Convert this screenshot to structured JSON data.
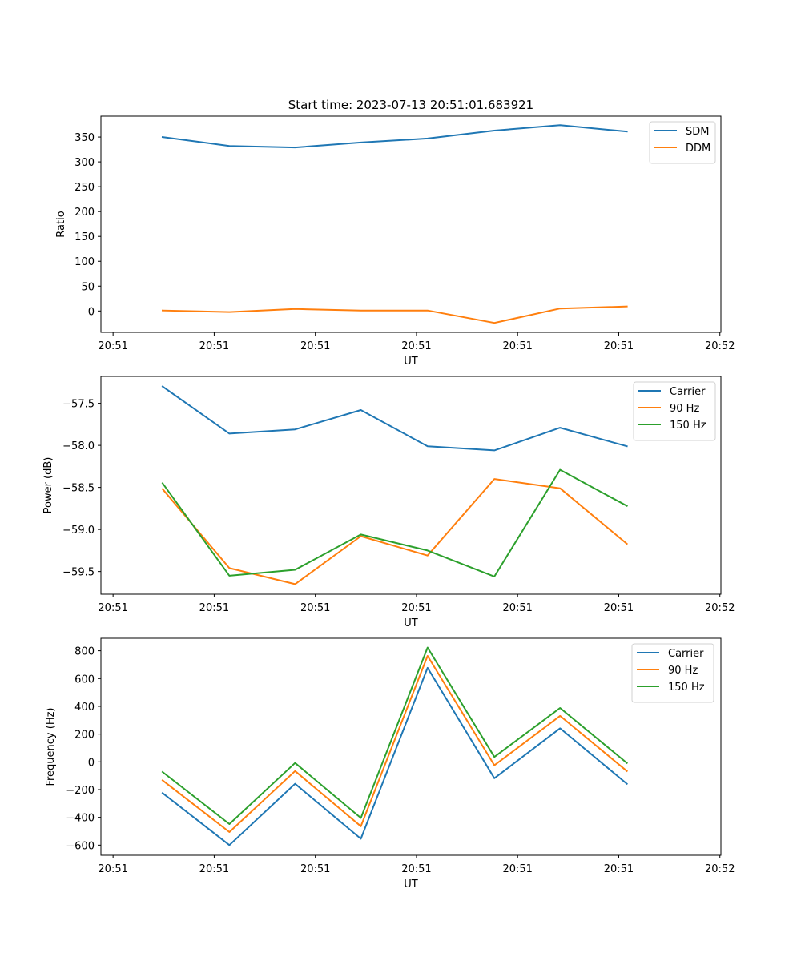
{
  "figure": {
    "title": "Start time: 2023-07-13 20:51:01.683921"
  },
  "chart_data": [
    {
      "type": "line",
      "title": "Start time: 2023-07-13 20:51:01.683921",
      "xlabel": "UT",
      "ylabel": "Ratio",
      "x": [
        0.49,
        1.15,
        1.8,
        2.45,
        3.11,
        3.77,
        4.42,
        5.08
      ],
      "xlim": [
        -0.12,
        6.01
      ],
      "xticks": [
        0,
        1,
        2,
        3,
        4,
        5,
        6
      ],
      "xtick_labels": [
        "20:51",
        "20:51",
        "20:51",
        "20:51",
        "20:51",
        "20:51",
        "20:52"
      ],
      "ylim": [
        -43,
        392
      ],
      "yticks": [
        0,
        50,
        100,
        150,
        200,
        250,
        300,
        350
      ],
      "ytick_labels": [
        "0",
        "50",
        "100",
        "150",
        "200",
        "250",
        "300",
        "350"
      ],
      "grid": false,
      "legend": "upper-right",
      "series": [
        {
          "name": "SDM",
          "color": "#1f77b4",
          "values": [
            350,
            332,
            329,
            339,
            347,
            363,
            374,
            361
          ]
        },
        {
          "name": "DDM",
          "color": "#ff7f0e",
          "values": [
            1,
            -2,
            4,
            1,
            1,
            -24,
            5,
            9
          ]
        }
      ]
    },
    {
      "type": "line",
      "title": "",
      "xlabel": "UT",
      "ylabel": "Power (dB)",
      "x": [
        0.49,
        1.15,
        1.8,
        2.45,
        3.11,
        3.77,
        4.42,
        5.08
      ],
      "xlim": [
        -0.12,
        6.01
      ],
      "xticks": [
        0,
        1,
        2,
        3,
        4,
        5,
        6
      ],
      "xtick_labels": [
        "20:51",
        "20:51",
        "20:51",
        "20:51",
        "20:51",
        "20:51",
        "20:52"
      ],
      "ylim": [
        -59.77,
        -57.18
      ],
      "yticks": [
        -59.5,
        -59.0,
        -58.5,
        -58.0,
        -57.5
      ],
      "ytick_labels": [
        "−59.5",
        "−59.0",
        "−58.5",
        "−58.0",
        "−57.5"
      ],
      "grid": false,
      "legend": "upper-right",
      "series": [
        {
          "name": "Carrier",
          "color": "#1f77b4",
          "values": [
            -57.3,
            -57.86,
            -57.81,
            -57.58,
            -58.01,
            -58.06,
            -57.79,
            -58.01
          ]
        },
        {
          "name": "90 Hz",
          "color": "#ff7f0e",
          "values": [
            -58.52,
            -59.46,
            -59.65,
            -59.08,
            -59.31,
            -58.4,
            -58.51,
            -59.17
          ]
        },
        {
          "name": "150 Hz",
          "color": "#2ca02c",
          "values": [
            -58.45,
            -59.55,
            -59.48,
            -59.06,
            -59.25,
            -59.56,
            -58.29,
            -58.72
          ]
        }
      ]
    },
    {
      "type": "line",
      "title": "",
      "xlabel": "UT",
      "ylabel": "Frequency (Hz)",
      "x": [
        0.49,
        1.15,
        1.8,
        2.45,
        3.11,
        3.77,
        4.42,
        5.08
      ],
      "xlim": [
        -0.12,
        6.01
      ],
      "xticks": [
        0,
        1,
        2,
        3,
        4,
        5,
        6
      ],
      "xtick_labels": [
        "20:51",
        "20:51",
        "20:51",
        "20:51",
        "20:51",
        "20:51",
        "20:52"
      ],
      "ylim": [
        -673,
        890
      ],
      "yticks": [
        -600,
        -400,
        -200,
        0,
        200,
        400,
        600,
        800
      ],
      "ytick_labels": [
        "−600",
        "−400",
        "−200",
        "0",
        "200",
        "400",
        "600",
        "800"
      ],
      "grid": false,
      "legend": "upper-right",
      "series": [
        {
          "name": "Carrier",
          "color": "#1f77b4",
          "values": [
            -225,
            -600,
            -158,
            -554,
            677,
            -118,
            242,
            -158
          ]
        },
        {
          "name": "90 Hz",
          "color": "#ff7f0e",
          "values": [
            -133,
            -506,
            -66,
            -464,
            763,
            -25,
            331,
            -66
          ]
        },
        {
          "name": "150 Hz",
          "color": "#2ca02c",
          "values": [
            -73,
            -448,
            -8,
            -404,
            823,
            35,
            388,
            -8
          ]
        }
      ]
    }
  ]
}
